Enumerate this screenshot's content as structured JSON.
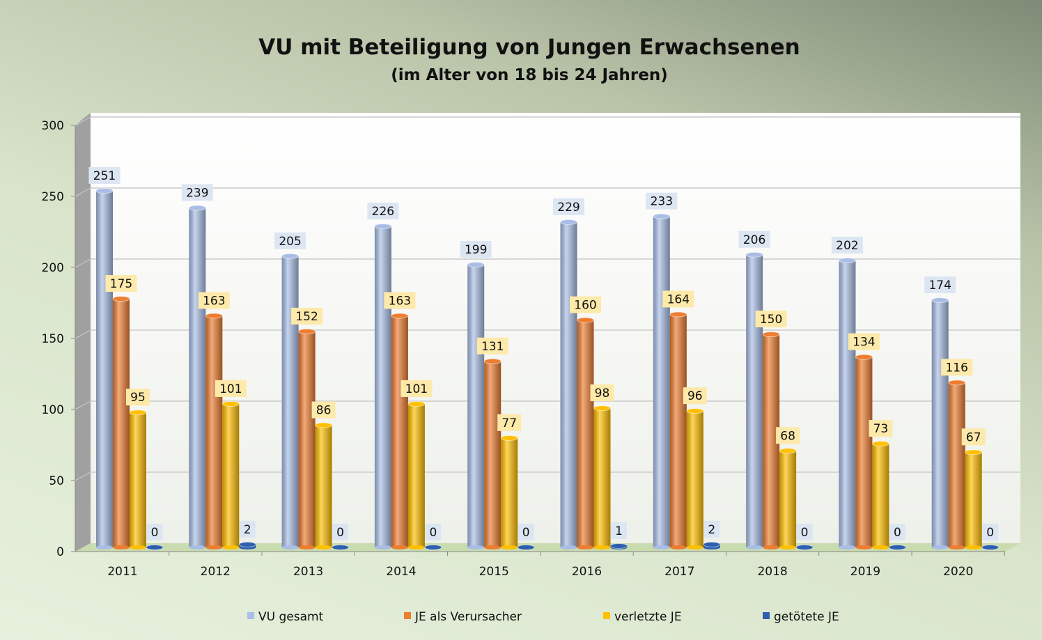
{
  "chart_data": {
    "type": "bar",
    "title": "VU mit Beteiligung von Jungen Erwachsenen",
    "subtitle": "(im Alter von 18 bis 24 Jahren)",
    "categories": [
      "2011",
      "2012",
      "2013",
      "2014",
      "2015",
      "2016",
      "2017",
      "2018",
      "2019",
      "2020"
    ],
    "ylim": [
      0,
      300
    ],
    "yticks": [
      0,
      50,
      100,
      150,
      200,
      250,
      300
    ],
    "grid": true,
    "legend_position": "bottom",
    "series": [
      {
        "name": "VU gesamt",
        "color": "#a9bee6",
        "values": [
          251,
          239,
          205,
          226,
          199,
          229,
          233,
          206,
          202,
          174
        ]
      },
      {
        "name": "JE als Verursacher",
        "color": "#ed7d31",
        "values": [
          175,
          163,
          152,
          163,
          131,
          160,
          164,
          150,
          134,
          116
        ]
      },
      {
        "name": "verletzte JE",
        "color": "#ffc000",
        "values": [
          95,
          101,
          86,
          101,
          77,
          98,
          96,
          68,
          73,
          67
        ]
      },
      {
        "name": "getötete JE",
        "color": "#2e5eb0",
        "values": [
          0,
          2,
          0,
          0,
          0,
          1,
          2,
          0,
          0,
          0
        ]
      }
    ]
  }
}
